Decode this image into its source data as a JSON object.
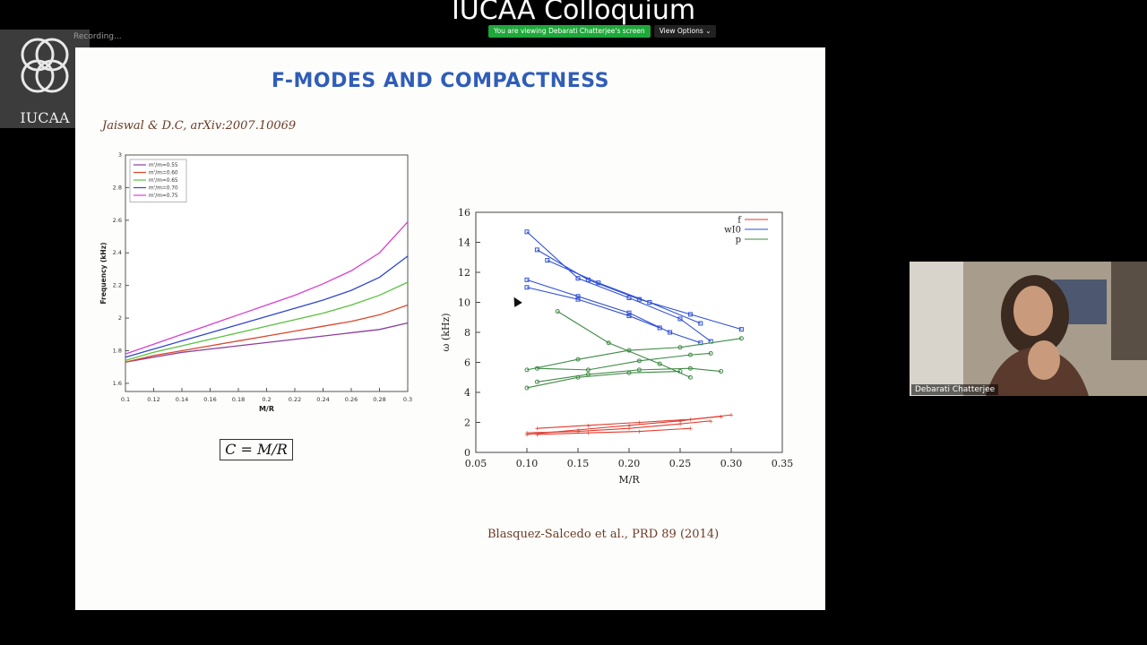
{
  "meeting": {
    "title": "IUCAA Colloquium",
    "share_notice": "You are viewing Debarati Chatterjee's screen",
    "view_options": "View Options ⌄",
    "recording": "Recording..."
  },
  "logo": {
    "text": "IUCAA"
  },
  "slide": {
    "title": "F-MODES AND COMPACTNESS",
    "citation_left": "Jaiswal & D.C, arXiv:2007.10069",
    "formula": "C = M/R",
    "citation_right": "Blasquez-Salcedo et al., PRD 89 (2014)"
  },
  "participant": {
    "name": "Debarati Chatterjee"
  },
  "colors": {
    "slide_title": "#2f5db8",
    "citation": "#6b3a24",
    "share_green": "#1fa83a"
  },
  "chart_data": [
    {
      "type": "line",
      "xlabel": "M/R",
      "ylabel": "Frequency (kHz)",
      "xlim": [
        0.1,
        0.3
      ],
      "ylim": [
        1.55,
        3.0
      ],
      "x_ticks": [
        "0.1",
        "0.12",
        "0.14",
        "0.16",
        "0.18",
        "0.2",
        "0.22",
        "0.24",
        "0.26",
        "0.28",
        "0.3"
      ],
      "y_ticks": [
        "1.6",
        "1.8",
        "2",
        "2.2",
        "2.4",
        "2.6",
        "2.8",
        "3"
      ],
      "legend_position": "top-left",
      "x": [
        0.1,
        0.12,
        0.14,
        0.16,
        0.18,
        0.2,
        0.22,
        0.24,
        0.26,
        0.28,
        0.3
      ],
      "series": [
        {
          "name": "m'/m=0.55",
          "color": "#8a3f9c",
          "values": [
            1.73,
            1.76,
            1.79,
            1.81,
            1.83,
            1.85,
            1.87,
            1.89,
            1.91,
            1.93,
            1.97
          ]
        },
        {
          "name": "m'/m=0.60",
          "color": "#d9472b",
          "values": [
            1.73,
            1.77,
            1.8,
            1.83,
            1.86,
            1.89,
            1.92,
            1.95,
            1.98,
            2.02,
            2.08
          ]
        },
        {
          "name": "m'/m=0.65",
          "color": "#58c23e",
          "values": [
            1.74,
            1.79,
            1.83,
            1.87,
            1.91,
            1.95,
            1.99,
            2.03,
            2.08,
            2.14,
            2.22
          ]
        },
        {
          "name": "m'/m=0.70",
          "color": "#3047c9",
          "values": [
            1.76,
            1.81,
            1.86,
            1.91,
            1.96,
            2.01,
            2.06,
            2.11,
            2.17,
            2.25,
            2.38
          ]
        },
        {
          "name": "m'/m=0.75",
          "color": "#d93fd0",
          "values": [
            1.78,
            1.84,
            1.9,
            1.96,
            2.02,
            2.08,
            2.14,
            2.21,
            2.29,
            2.4,
            2.59
          ]
        }
      ]
    },
    {
      "type": "scatter",
      "xlabel": "M/R",
      "ylabel": "ω (kHz)",
      "xlim": [
        0.05,
        0.35
      ],
      "ylim": [
        0,
        16
      ],
      "x_ticks": [
        "0.05",
        "0.10",
        "0.15",
        "0.20",
        "0.25",
        "0.30",
        "0.35"
      ],
      "y_ticks": [
        "0",
        "2",
        "4",
        "6",
        "8",
        "10",
        "12",
        "14",
        "16"
      ],
      "legend_position": "top-right",
      "series": [
        {
          "name": "f",
          "color": "#e03a2c",
          "lines": [
            [
              [
                0.1,
                1.2
              ],
              [
                0.15,
                1.5
              ],
              [
                0.2,
                1.8
              ],
              [
                0.25,
                2.1
              ],
              [
                0.3,
                2.5
              ]
            ],
            [
              [
                0.11,
                1.6
              ],
              [
                0.16,
                1.8
              ],
              [
                0.21,
                2.0
              ],
              [
                0.26,
                2.2
              ],
              [
                0.29,
                2.4
              ]
            ],
            [
              [
                0.1,
                1.3
              ],
              [
                0.15,
                1.4
              ],
              [
                0.2,
                1.6
              ],
              [
                0.25,
                1.9
              ],
              [
                0.28,
                2.1
              ]
            ],
            [
              [
                0.11,
                1.2
              ],
              [
                0.16,
                1.3
              ],
              [
                0.21,
                1.4
              ],
              [
                0.26,
                1.6
              ]
            ]
          ]
        },
        {
          "name": "wI0",
          "color": "#2f4fd6",
          "lines": [
            [
              [
                0.1,
                14.7
              ],
              [
                0.15,
                11.6
              ],
              [
                0.2,
                10.3
              ],
              [
                0.25,
                8.9
              ],
              [
                0.28,
                7.4
              ]
            ],
            [
              [
                0.11,
                13.5
              ],
              [
                0.16,
                11.5
              ],
              [
                0.21,
                10.2
              ],
              [
                0.26,
                9.2
              ],
              [
                0.31,
                8.2
              ]
            ],
            [
              [
                0.1,
                11.5
              ],
              [
                0.15,
                10.4
              ],
              [
                0.2,
                9.3
              ],
              [
                0.24,
                8.0
              ],
              [
                0.27,
                7.3
              ]
            ],
            [
              [
                0.1,
                11.0
              ],
              [
                0.15,
                10.2
              ],
              [
                0.2,
                9.1
              ],
              [
                0.23,
                8.3
              ]
            ],
            [
              [
                0.12,
                12.8
              ],
              [
                0.17,
                11.3
              ],
              [
                0.22,
                10.0
              ],
              [
                0.27,
                8.6
              ]
            ]
          ]
        },
        {
          "name": "p",
          "color": "#3e8a45",
          "lines": [
            [
              [
                0.1,
                5.5
              ],
              [
                0.15,
                6.2
              ],
              [
                0.2,
                6.8
              ],
              [
                0.25,
                7.0
              ],
              [
                0.31,
                7.6
              ]
            ],
            [
              [
                0.11,
                4.7
              ],
              [
                0.16,
                5.2
              ],
              [
                0.21,
                5.5
              ],
              [
                0.26,
                5.6
              ],
              [
                0.29,
                5.4
              ]
            ],
            [
              [
                0.1,
                4.3
              ],
              [
                0.15,
                5.0
              ],
              [
                0.2,
                5.3
              ],
              [
                0.25,
                5.4
              ]
            ],
            [
              [
                0.13,
                9.4
              ],
              [
                0.18,
                7.3
              ],
              [
                0.23,
                5.9
              ],
              [
                0.26,
                5.0
              ]
            ],
            [
              [
                0.11,
                5.6
              ],
              [
                0.16,
                5.5
              ],
              [
                0.21,
                6.1
              ],
              [
                0.26,
                6.5
              ],
              [
                0.28,
                6.6
              ]
            ]
          ]
        }
      ]
    }
  ]
}
